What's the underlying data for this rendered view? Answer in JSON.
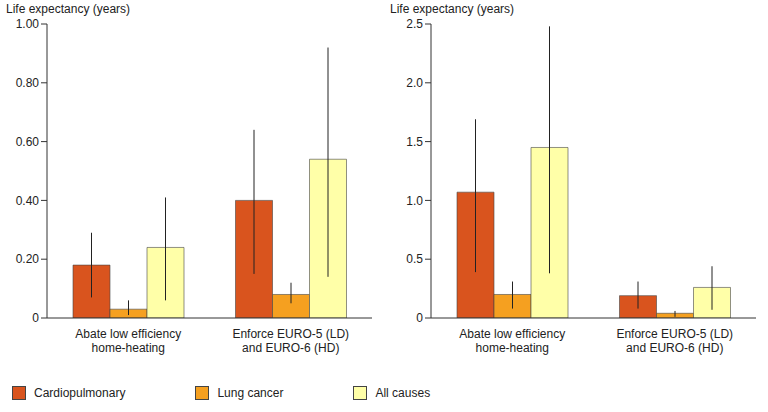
{
  "chart_data": [
    {
      "type": "bar",
      "y_label": "Life expectancy (years)",
      "categories": [
        "Abate low efficiency home-heating",
        "Enforce EURO-5 (LD) and EURO-6 (HD)"
      ],
      "series": [
        {
          "name": "Cardiopulmonary",
          "color": "#d9541e",
          "values": [
            0.18,
            0.4
          ],
          "errors": [
            [
              0.07,
              0.29
            ],
            [
              0.15,
              0.64
            ]
          ]
        },
        {
          "name": "Lung cancer",
          "color": "#f5a020",
          "values": [
            0.03,
            0.08
          ],
          "errors": [
            [
              0.01,
              0.06
            ],
            [
              0.05,
              0.12
            ]
          ]
        },
        {
          "name": "All causes",
          "color": "#ffffa8",
          "values": [
            0.24,
            0.54
          ],
          "errors": [
            [
              0.06,
              0.41
            ],
            [
              0.14,
              0.92
            ]
          ]
        }
      ],
      "ylim": [
        0,
        1
      ],
      "yticks": [
        0,
        {
          "value": 0.2,
          "label": "0.20"
        },
        {
          "value": 0.4,
          "label": "0.40"
        },
        {
          "value": 0.6,
          "label": "0.60"
        },
        {
          "value": 0.8,
          "label": "0.80"
        },
        {
          "value": 1,
          "label": "1.00"
        }
      ],
      "grid": false,
      "legend": "bottom"
    },
    {
      "type": "bar",
      "y_label": "Life expectancy (years)",
      "categories": [
        "Abate low efficiency home-heating",
        "Enforce EURO-5 (LD) and EURO-6 (HD)"
      ],
      "series": [
        {
          "name": "Cardiopulmonary",
          "color": "#d9541e",
          "values": [
            1.07,
            0.19
          ],
          "errors": [
            [
              0.39,
              1.69
            ],
            [
              0.08,
              0.31
            ]
          ]
        },
        {
          "name": "Lung cancer",
          "color": "#f5a020",
          "values": [
            0.2,
            0.04
          ],
          "errors": [
            [
              0.08,
              0.31
            ],
            [
              0.01,
              0.06
            ]
          ]
        },
        {
          "name": "All causes",
          "color": "#ffffa8",
          "values": [
            1.45,
            0.26
          ],
          "errors": [
            [
              0.38,
              2.48
            ],
            [
              0.07,
              0.44
            ]
          ]
        }
      ],
      "ylim": [
        0,
        2.5
      ],
      "yticks": [
        0,
        0.5,
        {
          "value": 1,
          "label": "1.0"
        },
        1.5,
        {
          "value": 2,
          "label": "2.0"
        },
        2.5
      ],
      "grid": false,
      "legend": "bottom"
    }
  ]
}
